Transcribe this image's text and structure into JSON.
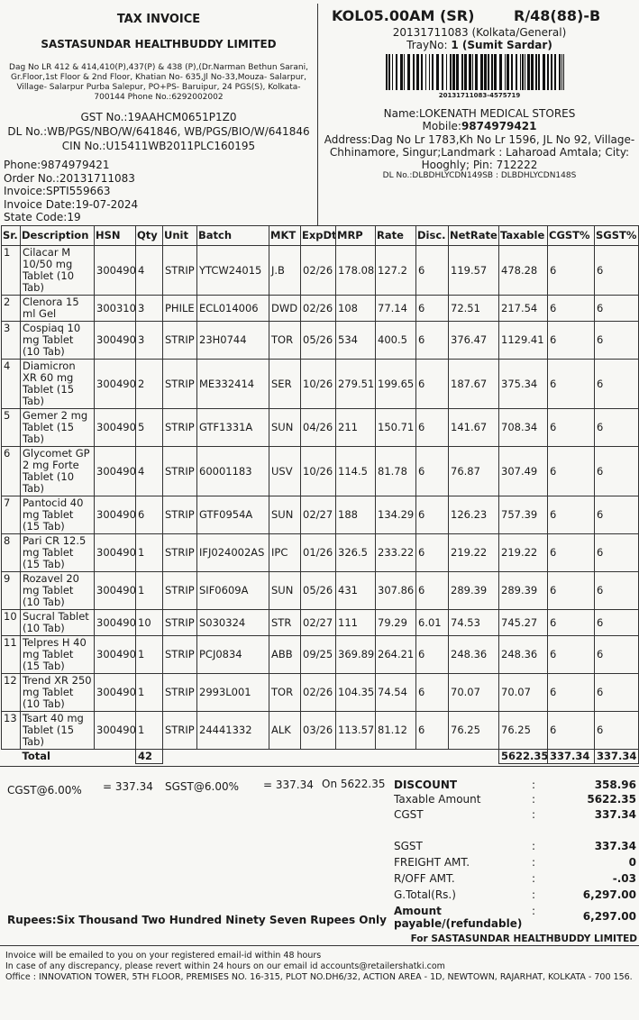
{
  "header": {
    "left": {
      "title": "TAX INVOICE",
      "company": "SASTASUNDAR HEALTHBUDDY LIMITED",
      "address": "Dag No LR 412 & 414,410(P),437(P) & 438 (P),(Dr.Narman Bethun Sarani, Gr.Floor,1st Floor & 2nd Floor, Khatian No- 635,Jl No-33,Mouza- Salarpur, Village- Salarpur Purba Salepur, PO+PS- Baruipur, 24 PGS(S), Kolkata-700144 Phone No.:6292002002",
      "gst": "GST No.:19AAHCM0651P1Z0",
      "dl": "DL No.:WB/PGS/NBO/W/641846, WB/PGS/BIO/W/641846",
      "cin": "CIN No.:U15411WB2011PLC160195",
      "info": [
        "Phone:9874979421",
        "Order No.:20131711083",
        "Invoice:SPTI559663",
        "Invoice Date:19-07-2024",
        "State Code:19"
      ]
    },
    "right": {
      "code": "KOL05.00AM (SR)",
      "ref": "R/48(88)-B",
      "order": "20131711083 (Kolkata/General)",
      "tray_label": "TrayNo:",
      "tray": "1 (Sumit Sardar)",
      "barcode_text": "20131711083-4575719",
      "name": "Name:LOKENATH MEDICAL STORES",
      "mobile_label": "Mobile:",
      "mobile": "9874979421",
      "address": "Address:Dag No Lr 1783,Kh No Lr 1596, JL No 92, Village-Chhinamore, Singur;Landmark : Laharoad Amtala; City: Hooghly; Pin: 712222",
      "dl": "DL No.:DLBDHLYCDN149SB : DLBDHLYCDN148S"
    }
  },
  "table": {
    "columns": [
      "Sr.",
      "Description",
      "HSN",
      "Qty",
      "Unit",
      "Batch",
      "MKT",
      "ExpDt",
      "MRP",
      "Rate",
      "Disc.",
      "NetRate",
      "Taxable",
      "CGST%",
      "SGST%"
    ],
    "rows": [
      [
        "1",
        "Cilacar M 10/50 mg Tablet (10 Tab)",
        "300490",
        "4",
        "STRIP",
        "YTCW24015",
        "J.B",
        "02/26",
        "178.08",
        "127.2",
        "6",
        "119.57",
        "478.28",
        "6",
        "6"
      ],
      [
        "2",
        "Clenora 15 ml Gel",
        "300310",
        "3",
        "PHILE",
        "ECL014006",
        "DWD",
        "02/26",
        "108",
        "77.14",
        "6",
        "72.51",
        "217.54",
        "6",
        "6"
      ],
      [
        "3",
        "Cospiaq 10 mg Tablet (10 Tab)",
        "300490",
        "3",
        "STRIP",
        "23H0744",
        "TOR",
        "05/26",
        "534",
        "400.5",
        "6",
        "376.47",
        "1129.41",
        "6",
        "6"
      ],
      [
        "4",
        "Diamicron XR 60 mg Tablet (15 Tab)",
        "300490",
        "2",
        "STRIP",
        "ME332414",
        "SER",
        "10/26",
        "279.51",
        "199.65",
        "6",
        "187.67",
        "375.34",
        "6",
        "6"
      ],
      [
        "5",
        "Gemer 2 mg Tablet (15 Tab)",
        "300490",
        "5",
        "STRIP",
        "GTF1331A",
        "SUN",
        "04/26",
        "211",
        "150.71",
        "6",
        "141.67",
        "708.34",
        "6",
        "6"
      ],
      [
        "6",
        "Glycomet GP 2 mg Forte Tablet (10 Tab)",
        "300490",
        "4",
        "STRIP",
        "60001183",
        "USV",
        "10/26",
        "114.5",
        "81.78",
        "6",
        "76.87",
        "307.49",
        "6",
        "6"
      ],
      [
        "7",
        "Pantocid 40 mg Tablet (15 Tab)",
        "300490",
        "6",
        "STRIP",
        "GTF0954A",
        "SUN",
        "02/27",
        "188",
        "134.29",
        "6",
        "126.23",
        "757.39",
        "6",
        "6"
      ],
      [
        "8",
        "Pari CR 12.5 mg Tablet (15 Tab)",
        "300490",
        "1",
        "STRIP",
        "IFJ024002AS",
        "IPC",
        "01/26",
        "326.5",
        "233.22",
        "6",
        "219.22",
        "219.22",
        "6",
        "6"
      ],
      [
        "9",
        "Rozavel 20 mg Tablet (10 Tab)",
        "300490",
        "1",
        "STRIP",
        "SIF0609A",
        "SUN",
        "05/26",
        "431",
        "307.86",
        "6",
        "289.39",
        "289.39",
        "6",
        "6"
      ],
      [
        "10",
        "Sucral Tablet (10 Tab)",
        "300490",
        "10",
        "STRIP",
        "S030324",
        "STR",
        "02/27",
        "111",
        "79.29",
        "6.01",
        "74.53",
        "745.27",
        "6",
        "6"
      ],
      [
        "11",
        "Telpres H 40 mg Tablet (15 Tab)",
        "300490",
        "1",
        "STRIP",
        "PCJ0834",
        "ABB",
        "09/25",
        "369.89",
        "264.21",
        "6",
        "248.36",
        "248.36",
        "6",
        "6"
      ],
      [
        "12",
        "Trend XR 250 mg Tablet (10 Tab)",
        "300490",
        "1",
        "STRIP",
        "2993L001",
        "TOR",
        "02/26",
        "104.35",
        "74.54",
        "6",
        "70.07",
        "70.07",
        "6",
        "6"
      ],
      [
        "13",
        "Tsart 40 mg Tablet (15 Tab)",
        "300490",
        "1",
        "STRIP",
        "24441332",
        "ALK",
        "03/26",
        "113.57",
        "81.12",
        "6",
        "76.25",
        "76.25",
        "6",
        "6"
      ]
    ],
    "total": {
      "label": "Total",
      "qty": "42",
      "taxable": "5622.35",
      "cgst": "337.34",
      "sgst": "337.34"
    }
  },
  "summary": {
    "cgst_label": "CGST@6.00%",
    "cgst_value": "= 337.34",
    "sgst_label": "SGST@6.00%",
    "sgst_value": "= 337.34",
    "on": "On 5622.35",
    "separator": ":",
    "rows": [
      {
        "label": "DISCOUNT",
        "value": "358.96"
      },
      {
        "label": "Taxable Amount",
        "value": "5622.35"
      },
      {
        "label": "CGST",
        "value": "337.34"
      },
      {
        "label": "SGST",
        "value": "337.34"
      },
      {
        "label": "FREIGHT AMT.",
        "value": "0"
      },
      {
        "label": "R/OFF AMT.",
        "value": "-.03"
      },
      {
        "label": "G.Total(Rs.)",
        "value": "6,297.00"
      },
      {
        "label": "Amount payable/(refundable)",
        "value": "6,297.00"
      }
    ],
    "words": "Rupees:Six Thousand Two Hundred Ninety Seven Rupees Only"
  },
  "footer": {
    "for": "For SASTASUNDAR HEALTHBUDDY LIMITED",
    "lines": [
      "Invoice will be emailed to you on your registered email-id within 48 hours",
      "In case of any discrepancy, please revert within 24 hours on our email id accounts@retailershatki.com",
      "Office : INNOVATION TOWER, 5TH FLOOR, PREMISES NO. 16-315, PLOT NO.DH6/32, ACTION AREA - 1D, NEWTOWN, RAJARHAT, KOLKATA - 700 156."
    ]
  }
}
